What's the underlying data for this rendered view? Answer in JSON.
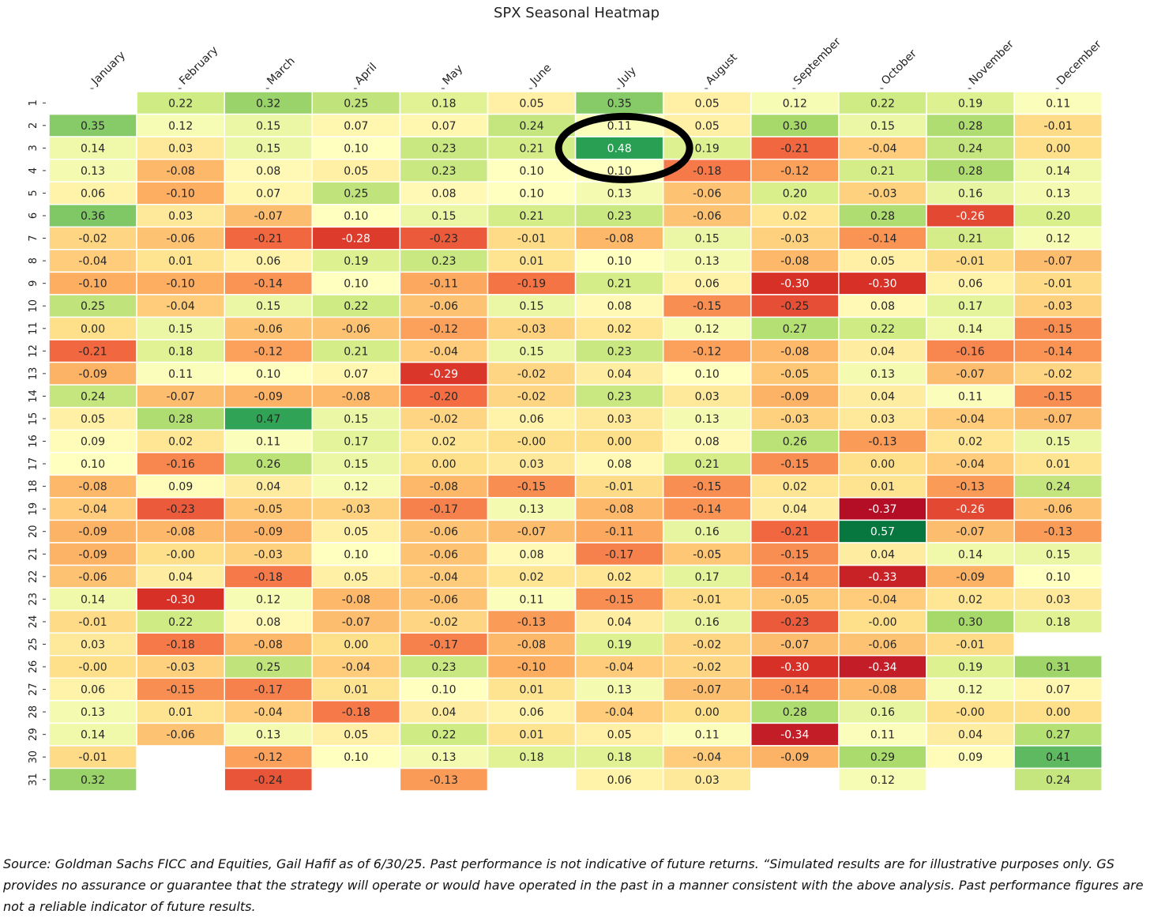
{
  "chart_data": {
    "type": "heatmap",
    "title": "SPX Seasonal Heatmap",
    "xlabel": "",
    "ylabel": "",
    "columns": [
      "January",
      "February",
      "March",
      "April",
      "May",
      "June",
      "July",
      "August",
      "September",
      "October",
      "November",
      "December"
    ],
    "rows": [
      "1",
      "2",
      "3",
      "4",
      "5",
      "6",
      "7",
      "8",
      "9",
      "10",
      "11",
      "12",
      "13",
      "14",
      "15",
      "16",
      "17",
      "18",
      "19",
      "20",
      "21",
      "22",
      "23",
      "24",
      "25",
      "26",
      "27",
      "28",
      "29",
      "30",
      "31"
    ],
    "value_labels": [
      [
        null,
        "0.22",
        "0.32",
        "0.25",
        "0.18",
        "0.05",
        "0.35",
        "0.05",
        "0.12",
        "0.22",
        "0.19",
        "0.11"
      ],
      [
        "0.35",
        "0.12",
        "0.15",
        "0.07",
        "0.07",
        "0.24",
        "0.11",
        "0.05",
        "0.30",
        "0.15",
        "0.28",
        "-0.01"
      ],
      [
        "0.14",
        "0.03",
        "0.15",
        "0.10",
        "0.23",
        "0.21",
        "0.48",
        "0.19",
        "-0.21",
        "-0.04",
        "0.24",
        "0.00"
      ],
      [
        "0.13",
        "-0.08",
        "0.08",
        "0.05",
        "0.23",
        "0.10",
        "0.10",
        "-0.18",
        "-0.12",
        "0.21",
        "0.28",
        "0.14"
      ],
      [
        "0.06",
        "-0.10",
        "0.07",
        "0.25",
        "0.08",
        "0.10",
        "0.13",
        "-0.06",
        "0.20",
        "-0.03",
        "0.16",
        "0.13"
      ],
      [
        "0.36",
        "0.03",
        "-0.07",
        "0.10",
        "0.15",
        "0.21",
        "0.23",
        "-0.06",
        "0.02",
        "0.28",
        "-0.26",
        "0.20"
      ],
      [
        "-0.02",
        "-0.06",
        "-0.21",
        "-0.28",
        "-0.23",
        "-0.01",
        "-0.08",
        "0.15",
        "-0.03",
        "-0.14",
        "0.21",
        "0.12"
      ],
      [
        "-0.04",
        "0.01",
        "0.06",
        "0.19",
        "0.23",
        "0.01",
        "0.10",
        "0.13",
        "-0.08",
        "0.05",
        "-0.01",
        "-0.07"
      ],
      [
        "-0.10",
        "-0.10",
        "-0.14",
        "0.10",
        "-0.11",
        "-0.19",
        "0.21",
        "0.06",
        "-0.30",
        "-0.30",
        "0.06",
        "-0.01"
      ],
      [
        "0.25",
        "-0.04",
        "0.15",
        "0.22",
        "-0.06",
        "0.15",
        "0.08",
        "-0.15",
        "-0.25",
        "0.08",
        "0.17",
        "-0.03"
      ],
      [
        "0.00",
        "0.15",
        "-0.06",
        "-0.06",
        "-0.12",
        "-0.03",
        "0.02",
        "0.12",
        "0.27",
        "0.22",
        "0.14",
        "-0.15"
      ],
      [
        "-0.21",
        "0.18",
        "-0.12",
        "0.21",
        "-0.04",
        "0.15",
        "0.23",
        "-0.12",
        "-0.08",
        "0.04",
        "-0.16",
        "-0.14"
      ],
      [
        "-0.09",
        "0.11",
        "0.10",
        "0.07",
        "-0.29",
        "-0.02",
        "0.04",
        "0.10",
        "-0.05",
        "0.13",
        "-0.07",
        "-0.02"
      ],
      [
        "0.24",
        "-0.07",
        "-0.09",
        "-0.08",
        "-0.20",
        "-0.02",
        "0.23",
        "0.03",
        "-0.09",
        "0.04",
        "0.11",
        "-0.15"
      ],
      [
        "0.05",
        "0.28",
        "0.47",
        "0.15",
        "-0.02",
        "0.06",
        "0.03",
        "0.13",
        "-0.03",
        "0.03",
        "-0.04",
        "-0.07"
      ],
      [
        "0.09",
        "0.02",
        "0.11",
        "0.17",
        "0.02",
        "-0.00",
        "0.00",
        "0.08",
        "0.26",
        "-0.13",
        "0.02",
        "0.15"
      ],
      [
        "0.10",
        "-0.16",
        "0.26",
        "0.15",
        "0.00",
        "0.03",
        "0.08",
        "0.21",
        "-0.15",
        "0.00",
        "-0.04",
        "0.01"
      ],
      [
        "-0.08",
        "0.09",
        "0.04",
        "0.12",
        "-0.08",
        "-0.15",
        "-0.01",
        "-0.15",
        "0.02",
        "0.01",
        "-0.13",
        "0.24"
      ],
      [
        "-0.04",
        "-0.23",
        "-0.05",
        "-0.03",
        "-0.17",
        "0.13",
        "-0.08",
        "-0.14",
        "0.04",
        "-0.37",
        "-0.26",
        "-0.06"
      ],
      [
        "-0.09",
        "-0.08",
        "-0.09",
        "0.05",
        "-0.06",
        "-0.07",
        "-0.11",
        "0.16",
        "-0.21",
        "0.57",
        "-0.07",
        "-0.13"
      ],
      [
        "-0.09",
        "-0.00",
        "-0.03",
        "0.10",
        "-0.06",
        "0.08",
        "-0.17",
        "-0.05",
        "-0.15",
        "0.04",
        "0.14",
        "0.15"
      ],
      [
        "-0.06",
        "0.04",
        "-0.18",
        "0.05",
        "-0.04",
        "0.02",
        "0.02",
        "0.17",
        "-0.14",
        "-0.33",
        "-0.09",
        "0.10"
      ],
      [
        "0.14",
        "-0.30",
        "0.12",
        "-0.08",
        "-0.06",
        "0.11",
        "-0.15",
        "-0.01",
        "-0.05",
        "-0.04",
        "0.02",
        "0.03"
      ],
      [
        "-0.01",
        "0.22",
        "0.08",
        "-0.07",
        "-0.02",
        "-0.13",
        "0.04",
        "0.16",
        "-0.23",
        "-0.00",
        "0.30",
        "0.18"
      ],
      [
        "0.03",
        "-0.18",
        "-0.08",
        "0.00",
        "-0.17",
        "-0.08",
        "0.19",
        "-0.02",
        "-0.07",
        "-0.06",
        "-0.01",
        null
      ],
      [
        "-0.00",
        "-0.03",
        "0.25",
        "-0.04",
        "0.23",
        "-0.10",
        "-0.04",
        "-0.02",
        "-0.30",
        "-0.34",
        "0.19",
        "0.31"
      ],
      [
        "0.06",
        "-0.15",
        "-0.17",
        "0.01",
        "0.10",
        "0.01",
        "0.13",
        "-0.07",
        "-0.14",
        "-0.08",
        "0.12",
        "0.07"
      ],
      [
        "0.13",
        "0.01",
        "-0.04",
        "-0.18",
        "0.04",
        "0.06",
        "-0.04",
        "0.00",
        "0.28",
        "0.16",
        "-0.00",
        "0.00"
      ],
      [
        "0.14",
        "-0.06",
        "0.13",
        "0.05",
        "0.22",
        "0.01",
        "0.05",
        "0.11",
        "-0.34",
        "0.11",
        "0.04",
        "0.27"
      ],
      [
        "-0.01",
        null,
        "-0.12",
        "0.10",
        "0.13",
        "0.18",
        "0.18",
        "-0.04",
        "-0.09",
        "0.29",
        "0.09",
        "0.41"
      ],
      [
        "0.32",
        null,
        "-0.24",
        null,
        "-0.13",
        null,
        "0.06",
        "0.03",
        null,
        "0.12",
        null,
        "0.24"
      ]
    ],
    "color_scale": {
      "vmin": -0.4,
      "vmax": 0.6,
      "colormap": "RdYlGn",
      "stops": [
        "#a50026",
        "#d73027",
        "#f46d43",
        "#fdae61",
        "#fee08b",
        "#ffffbf",
        "#d9ef8b",
        "#a6d96a",
        "#66bd63",
        "#1a9850",
        "#006837"
      ]
    },
    "highlight": {
      "row": "3",
      "column": "July",
      "value": "0.48",
      "shape": "ellipse"
    }
  },
  "footnote": {
    "text": "Source: Goldman Sachs FICC and Equities, Gail Hafif as of 6/30/25. Past performance is not indicative of future returns. “Simulated results are for illustrative purposes only. GS provides no assurance or guarantee that the strategy will operate or would have operated in the past in a manner consistent with the above analysis. Past performance figures are not a reliable indicator of future results."
  }
}
